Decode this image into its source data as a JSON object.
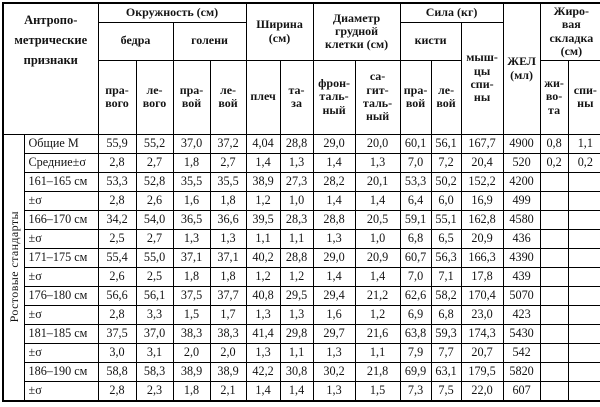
{
  "page": {
    "background": "#ffffff",
    "text_color": "#141414",
    "border_color": "#000000"
  },
  "table": {
    "corner_header": "Антропо-\nметрические\nпризнаки",
    "side_label": "Ростовые стандарты",
    "groups": {
      "circumference": "Окружность (см)",
      "width": "Ширина\n(см)",
      "chest_diameter": "Диаметр\nгрудной\nклетки (см)",
      "strength": "Сила (кг)",
      "vital_capacity": "ЖЕЛ\n(мл)",
      "fat_fold": "Жиро-\nвая\nскладка\n(см)"
    },
    "subgroups": {
      "thigh": "бедра",
      "shin": "голени",
      "hands": "кисти",
      "back_muscles": "мыш-\nцы\nспи-\nны"
    },
    "leaf_headers": [
      "пра-\nвого",
      "ле-\nвого",
      "пра-\nвой",
      "ле-\nвой",
      "плеч",
      "та-\nза",
      "фрон-\nталь-\nный",
      "са-\nгит-\nталь-\nный",
      "пра-\nвой",
      "ле-\nвой",
      "жи-\nво-\nта",
      "спи-\nны"
    ],
    "rows": [
      {
        "label": "Общие М",
        "values": [
          "55,9",
          "55,2",
          "37,0",
          "37,2",
          "4,04",
          "28,8",
          "29,0",
          "20,0",
          "60,1",
          "56,1",
          "167,7",
          "4900",
          "0,8",
          "1,1"
        ]
      },
      {
        "label": "Средние±σ",
        "values": [
          "2,8",
          "2,7",
          "1,8",
          "2,7",
          "1,4",
          "1,3",
          "1,4",
          "1,3",
          "7,0",
          "7,2",
          "20,4",
          "520",
          "0,2",
          "0,2"
        ]
      },
      {
        "label": "161–165 см",
        "values": [
          "53,3",
          "52,8",
          "35,5",
          "35,5",
          "38,9",
          "27,3",
          "28,2",
          "20,1",
          "53,3",
          "50,2",
          "152,2",
          "4200",
          "",
          ""
        ]
      },
      {
        "label": "±σ",
        "values": [
          "2,8",
          "2,6",
          "1,6",
          "1,8",
          "1,2",
          "1,0",
          "1,4",
          "1,4",
          "6,4",
          "6,0",
          "16,9",
          "499",
          "",
          ""
        ]
      },
      {
        "label": "166–170 см",
        "values": [
          "34,2",
          "54,0",
          "36,5",
          "36,6",
          "39,5",
          "28,3",
          "28,8",
          "20,5",
          "59,1",
          "55,1",
          "162,8",
          "4580",
          "",
          ""
        ]
      },
      {
        "label": "±σ",
        "values": [
          "2,5",
          "2,7",
          "1,3",
          "1,3",
          "1,1",
          "1,1",
          "1,3",
          "1,0",
          "6,8",
          "6,5",
          "20,9",
          "436",
          "",
          ""
        ]
      },
      {
        "label": "171–175 см",
        "values": [
          "55,4",
          "55,0",
          "37,1",
          "37,1",
          "40,2",
          "28,8",
          "29,0",
          "20,9",
          "60,7",
          "56,3",
          "166,3",
          "4390",
          "",
          ""
        ]
      },
      {
        "label": "±σ",
        "values": [
          "2,6",
          "2,5",
          "1,8",
          "1,8",
          "1,2",
          "1,2",
          "1,4",
          "1,4",
          "7,0",
          "7,1",
          "17,8",
          "439",
          "",
          ""
        ]
      },
      {
        "label": "176–180 см",
        "values": [
          "56,6",
          "56,1",
          "37,5",
          "37,7",
          "40,8",
          "29,5",
          "29,4",
          "21,2",
          "62,6",
          "58,2",
          "170,4",
          "5070",
          "",
          ""
        ]
      },
      {
        "label": "±σ",
        "values": [
          "2,8",
          "3,3",
          "1,5",
          "1,7",
          "1,3",
          "1,3",
          "1,6",
          "1,2",
          "6,9",
          "6,8",
          "23,0",
          "423",
          "",
          ""
        ]
      },
      {
        "label": "181–185 см",
        "values": [
          "37,5",
          "37,0",
          "38,3",
          "38,3",
          "41,4",
          "29,8",
          "29,7",
          "21,6",
          "63,8",
          "59,3",
          "174,3",
          "5430",
          "",
          ""
        ]
      },
      {
        "label": "±σ",
        "values": [
          "3,0",
          "3,1",
          "2,0",
          "2,0",
          "1,3",
          "1,1",
          "1,3",
          "1,1",
          "7,9",
          "7,7",
          "20,7",
          "542",
          "",
          ""
        ]
      },
      {
        "label": "186–190 см",
        "values": [
          "58,8",
          "58,3",
          "38,9",
          "38,9",
          "42,2",
          "30,8",
          "30,2",
          "21,8",
          "69,9",
          "63,1",
          "179,5",
          "5820",
          "",
          ""
        ]
      },
      {
        "label": "±σ",
        "values": [
          "2,8",
          "2,3",
          "1,8",
          "2,1",
          "1,4",
          "1,4",
          "1,3",
          "1,5",
          "7,3",
          "7,5",
          "22,0",
          "607",
          "",
          ""
        ]
      }
    ]
  }
}
